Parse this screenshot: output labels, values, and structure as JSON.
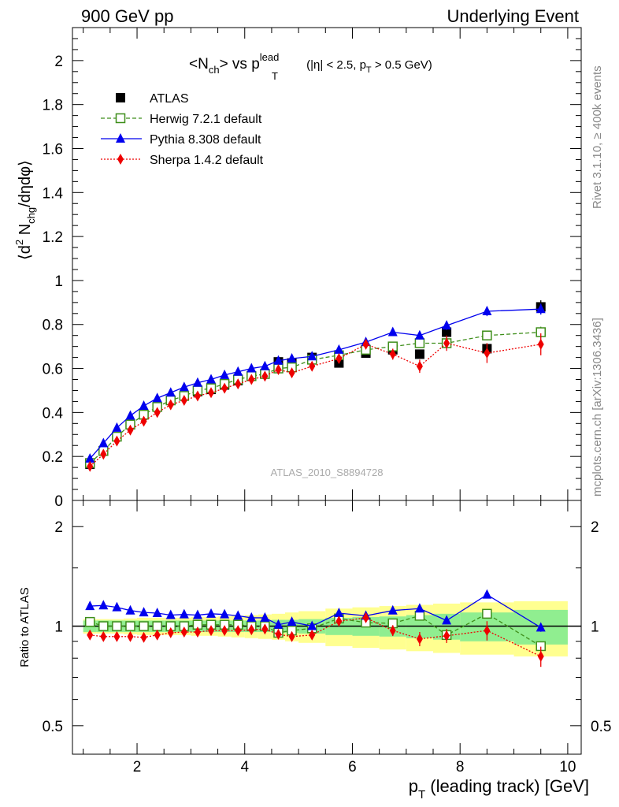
{
  "header": {
    "left": "900 GeV pp",
    "right": "Underlying Event"
  },
  "side_labels": {
    "rivet": "Rivet 3.1.10, ≥ 400k events",
    "mcplots": "mcplots.cern.ch [arXiv:1306.3436]"
  },
  "chart_data": [
    {
      "type": "scatter",
      "title_parts": {
        "main": "<N",
        "main_sub": "ch",
        "vs": "> vs p",
        "sup": "lead",
        "sub": "T",
        "cut": " (|η| < 2.5, p",
        "cut_sub": "T",
        "cut_end": " > 0.5 GeV)"
      },
      "ylabel_parts": {
        "a": "⟨d",
        "sup": "2",
        "b": " N",
        "sub": "chg",
        "c": "/dηdφ⟩"
      },
      "watermark": "ATLAS_2010_S8894728",
      "xlim": [
        0.8,
        10.25
      ],
      "ylim": [
        0,
        2.15
      ],
      "yticks": [
        {
          "v": 0,
          "label": "0"
        },
        {
          "v": 0.2,
          "label": "0.2"
        },
        {
          "v": 0.4,
          "label": "0.4"
        },
        {
          "v": 0.6,
          "label": "0.6"
        },
        {
          "v": 0.8,
          "label": "0.8"
        },
        {
          "v": 1,
          "label": "1"
        },
        {
          "v": 1.2,
          "label": "1.2"
        },
        {
          "v": 1.4,
          "label": "1.4"
        },
        {
          "v": 1.6,
          "label": "1.6"
        },
        {
          "v": 1.8,
          "label": "1.8"
        },
        {
          "v": 2,
          "label": "2"
        }
      ],
      "bins": [
        [
          1.0,
          1.25
        ],
        [
          1.25,
          1.5
        ],
        [
          1.5,
          1.75
        ],
        [
          1.75,
          2.0
        ],
        [
          2.0,
          2.25
        ],
        [
          2.25,
          2.5
        ],
        [
          2.5,
          2.75
        ],
        [
          2.75,
          3.0
        ],
        [
          3.0,
          3.25
        ],
        [
          3.25,
          3.5
        ],
        [
          3.5,
          3.75
        ],
        [
          3.75,
          4.0
        ],
        [
          4.0,
          4.25
        ],
        [
          4.25,
          4.5
        ],
        [
          4.5,
          4.75
        ],
        [
          4.75,
          5.0
        ],
        [
          5.0,
          5.5
        ],
        [
          5.5,
          6.0
        ],
        [
          6.0,
          6.5
        ],
        [
          6.5,
          7.0
        ],
        [
          7.0,
          7.5
        ],
        [
          7.5,
          8.0
        ],
        [
          8.0,
          9.0
        ],
        [
          9.0,
          10.0
        ]
      ],
      "x": [
        1.125,
        1.375,
        1.625,
        1.875,
        2.125,
        2.375,
        2.625,
        2.875,
        3.125,
        3.375,
        3.625,
        3.875,
        4.125,
        4.375,
        4.625,
        4.875,
        5.25,
        5.75,
        6.25,
        6.75,
        7.25,
        7.75,
        8.5,
        9.5
      ],
      "series": [
        {
          "name": "ATLAS",
          "color": "#000000",
          "marker": "filled-square",
          "line": "none",
          "values": [
            0.165,
            0.225,
            0.29,
            0.345,
            0.39,
            0.425,
            0.455,
            0.475,
            0.495,
            0.505,
            0.525,
            0.545,
            0.565,
            0.575,
            0.63,
            0.625,
            0.65,
            0.625,
            0.67,
            0.685,
            0.665,
            0.765,
            0.69,
            0.88
          ],
          "errors": [
            0.005,
            0.005,
            0.005,
            0.005,
            0.005,
            0.005,
            0.005,
            0.005,
            0.006,
            0.006,
            0.006,
            0.006,
            0.007,
            0.008,
            0.01,
            0.01,
            0.01,
            0.012,
            0.015,
            0.02,
            0.02,
            0.025,
            0.025,
            0.03
          ]
        },
        {
          "name": "Herwig 7.2.1 default",
          "color": "#3e8e1a",
          "marker": "open-square",
          "line": "dashed",
          "values": [
            0.17,
            0.225,
            0.29,
            0.345,
            0.39,
            0.425,
            0.455,
            0.475,
            0.5,
            0.51,
            0.53,
            0.55,
            0.565,
            0.575,
            0.6,
            0.605,
            0.64,
            0.66,
            0.685,
            0.7,
            0.715,
            0.715,
            0.75,
            0.765
          ],
          "errors": [
            0.004,
            0.004,
            0.004,
            0.004,
            0.005,
            0.005,
            0.005,
            0.006,
            0.006,
            0.006,
            0.007,
            0.007,
            0.008,
            0.008,
            0.009,
            0.01,
            0.01,
            0.012,
            0.014,
            0.016,
            0.018,
            0.02,
            0.022,
            0.025
          ]
        },
        {
          "name": "Pythia 8.308 default",
          "color": "#0000ee",
          "marker": "filled-triangle",
          "line": "solid",
          "values": [
            0.19,
            0.26,
            0.33,
            0.385,
            0.43,
            0.465,
            0.49,
            0.515,
            0.535,
            0.55,
            0.57,
            0.585,
            0.6,
            0.61,
            0.635,
            0.645,
            0.655,
            0.685,
            0.72,
            0.765,
            0.75,
            0.795,
            0.86,
            0.87
          ],
          "errors": [
            0.004,
            0.004,
            0.004,
            0.004,
            0.005,
            0.005,
            0.005,
            0.006,
            0.006,
            0.006,
            0.007,
            0.007,
            0.008,
            0.008,
            0.009,
            0.01,
            0.01,
            0.012,
            0.014,
            0.016,
            0.018,
            0.02,
            0.022,
            0.025
          ]
        },
        {
          "name": "Sherpa 1.4.2 default",
          "color": "#ee0000",
          "marker": "filled-diamond",
          "line": "dotted",
          "values": [
            0.155,
            0.21,
            0.27,
            0.32,
            0.36,
            0.4,
            0.435,
            0.455,
            0.475,
            0.49,
            0.51,
            0.53,
            0.55,
            0.565,
            0.595,
            0.58,
            0.61,
            0.645,
            0.71,
            0.665,
            0.61,
            0.715,
            0.67,
            0.71
          ],
          "errors": [
            0.004,
            0.004,
            0.004,
            0.004,
            0.005,
            0.005,
            0.005,
            0.006,
            0.006,
            0.006,
            0.007,
            0.007,
            0.008,
            0.008,
            0.009,
            0.01,
            0.012,
            0.015,
            0.02,
            0.025,
            0.03,
            0.035,
            0.045,
            0.05
          ]
        }
      ]
    },
    {
      "type": "scatter",
      "ylabel": "Ratio to ATLAS",
      "xlabel_parts": {
        "a": "p",
        "sub": "T",
        "b": " (leading track) [GeV]"
      },
      "xlim": [
        0.8,
        10.25
      ],
      "ylim_log": [
        0.41,
        2.4
      ],
      "xticks": [
        {
          "v": 2,
          "label": "2"
        },
        {
          "v": 4,
          "label": "4"
        },
        {
          "v": 6,
          "label": "6"
        },
        {
          "v": 8,
          "label": "8"
        },
        {
          "v": 10,
          "label": "10"
        }
      ],
      "yticks": [
        {
          "v": 0.5,
          "label": "0.5"
        },
        {
          "v": 1,
          "label": "1"
        },
        {
          "v": 2,
          "label": "2"
        }
      ],
      "bands": {
        "inner_color": "#90ee90",
        "outer_color": "#ffff90",
        "inner": [
          0.04,
          0.04,
          0.04,
          0.04,
          0.04,
          0.04,
          0.04,
          0.04,
          0.04,
          0.04,
          0.04,
          0.04,
          0.04,
          0.04,
          0.045,
          0.045,
          0.05,
          0.06,
          0.065,
          0.07,
          0.08,
          0.09,
          0.1,
          0.12
        ],
        "outer": [
          0.05,
          0.05,
          0.05,
          0.055,
          0.06,
          0.06,
          0.06,
          0.06,
          0.065,
          0.065,
          0.07,
          0.075,
          0.08,
          0.085,
          0.09,
          0.1,
          0.11,
          0.13,
          0.14,
          0.15,
          0.16,
          0.17,
          0.18,
          0.19
        ]
      },
      "series": [
        {
          "name": "Herwig 7.2.1 default",
          "values": [
            1.03,
            1.0,
            1.0,
            1.0,
            1.0,
            1.0,
            1.0,
            1.0,
            1.01,
            1.01,
            1.01,
            1.01,
            1.0,
            1.0,
            0.955,
            0.97,
            0.985,
            1.055,
            1.025,
            1.02,
            1.075,
            0.94,
            1.09,
            0.87
          ]
        },
        {
          "name": "Pythia 8.308 default",
          "values": [
            1.15,
            1.155,
            1.14,
            1.115,
            1.1,
            1.095,
            1.08,
            1.085,
            1.08,
            1.09,
            1.085,
            1.075,
            1.06,
            1.06,
            1.01,
            1.03,
            1.0,
            1.095,
            1.075,
            1.115,
            1.13,
            1.04,
            1.245,
            0.99
          ]
        },
        {
          "name": "Sherpa 1.4.2 default",
          "values": [
            0.94,
            0.93,
            0.93,
            0.93,
            0.925,
            0.94,
            0.955,
            0.96,
            0.96,
            0.97,
            0.97,
            0.97,
            0.975,
            0.98,
            0.945,
            0.93,
            0.94,
            1.035,
            1.06,
            0.97,
            0.915,
            0.935,
            0.97,
            0.81
          ]
        }
      ]
    }
  ]
}
